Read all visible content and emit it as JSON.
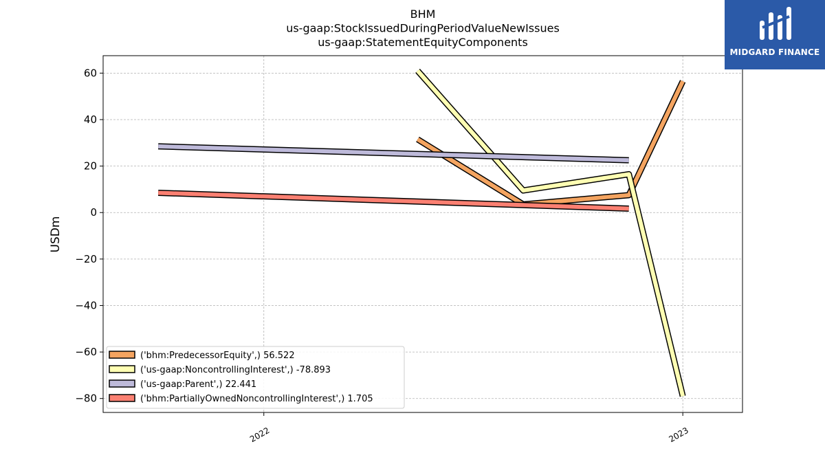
{
  "logo": {
    "text": "MIDGARD FINANCE",
    "icon": "midgard-logo-icon",
    "color": "#2b5aa8"
  },
  "chart_data": {
    "type": "line",
    "title": "BHM\nus-gaap:StockIssuedDuringPeriodValueNewIssues\nus-gaap:StatementEquityComponents",
    "xlabel": "",
    "ylabel": "USDm",
    "x_ticks": [
      "2022",
      "2023"
    ],
    "y_ticks": [
      "60",
      "40",
      "20",
      "0",
      "−20",
      "−40",
      "−60",
      "−80"
    ],
    "ylim": [
      -86,
      67.5
    ],
    "xlim": [
      "2021-08-14",
      "2023-02-22"
    ],
    "grid": true,
    "legend_position": "lower-left",
    "series": [
      {
        "name": "('bhm:PredecessorEquity',) 56.522",
        "color": "#f4a460",
        "points": [
          [
            "2022-05-15",
            31.5
          ],
          [
            "2022-08-15",
            3.5
          ],
          [
            "2022-11-15",
            7.5
          ],
          [
            "2023-01-01",
            56.5
          ]
        ]
      },
      {
        "name": "('us-gaap:NoncontrollingInterest',) -78.893",
        "color": "#ffffb3",
        "points": [
          [
            "2022-05-15",
            61
          ],
          [
            "2022-08-15",
            9.5
          ],
          [
            "2022-11-15",
            16.5
          ],
          [
            "2023-01-01",
            -79
          ]
        ]
      },
      {
        "name": "('us-gaap:Parent',) 22.441",
        "color": "#bebada",
        "points": [
          [
            "2021-10-01",
            28.5
          ],
          [
            "2022-11-15",
            22.5
          ]
        ]
      },
      {
        "name": "('bhm:PartiallyOwnedNoncontrollingInterest',) 1.705",
        "color": "#fb8072",
        "points": [
          [
            "2021-10-01",
            8.5
          ],
          [
            "2022-11-15",
            1.7
          ]
        ]
      }
    ]
  }
}
